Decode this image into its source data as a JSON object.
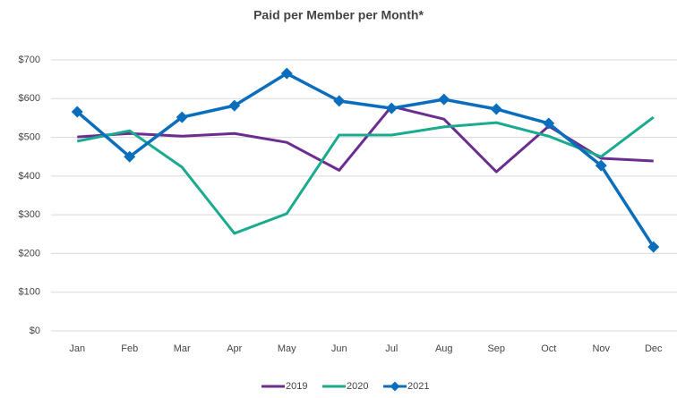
{
  "chart_data": {
    "type": "line",
    "title": "Paid per Member per Month*",
    "categories": [
      "Jan",
      "Feb",
      "Mar",
      "Apr",
      "May",
      "Jun",
      "Jul",
      "Aug",
      "Sep",
      "Oct",
      "Nov",
      "Dec"
    ],
    "series": [
      {
        "name": "2019",
        "color": "#6c2d91",
        "marker": "none",
        "values": [
          501,
          510,
          503,
          510,
          487,
          415,
          580,
          547,
          411,
          529,
          446,
          439
        ]
      },
      {
        "name": "2020",
        "color": "#1aaa8e",
        "marker": "none",
        "values": [
          490,
          517,
          423,
          252,
          303,
          506,
          506,
          527,
          538,
          503,
          450,
          552
        ]
      },
      {
        "name": "2021",
        "color": "#0a6ebd",
        "marker": "diamond",
        "values": [
          566,
          450,
          552,
          582,
          665,
          594,
          575,
          598,
          573,
          536,
          427,
          217
        ]
      }
    ],
    "ylim": [
      0,
      700
    ],
    "yticks": [
      {
        "value": 0,
        "label": "$0"
      },
      {
        "value": 100,
        "label": "$100"
      },
      {
        "value": 200,
        "label": "$200"
      },
      {
        "value": 300,
        "label": "$300"
      },
      {
        "value": 400,
        "label": "$400"
      },
      {
        "value": 500,
        "label": "$500"
      },
      {
        "value": 600,
        "label": "$600"
      },
      {
        "value": 700,
        "label": "$700"
      }
    ],
    "grid": true,
    "legend": "bottom"
  }
}
